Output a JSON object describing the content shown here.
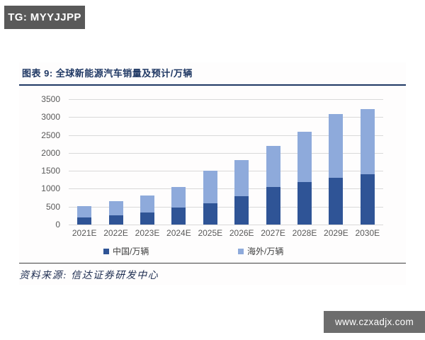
{
  "page": {
    "badge_label": "TG: MYYJJPP",
    "watermark_label": "www.czxadjx.com"
  },
  "figure": {
    "title": "图表 9: 全球新能源汽车销量及预计/万辆",
    "source": "资料来源: 信达证券研发中心"
  },
  "chart_data": {
    "type": "bar",
    "stacked": true,
    "title": "全球新能源汽车销量及预计/万辆",
    "xlabel": "",
    "ylabel": "",
    "categories": [
      "2021E",
      "2022E",
      "2023E",
      "2024E",
      "2025E",
      "2026E",
      "2027E",
      "2028E",
      "2029E",
      "2030E"
    ],
    "series": [
      {
        "name": "中国/万辆",
        "color": "#2f5496",
        "values": [
          200,
          260,
          330,
          470,
          600,
          790,
          1050,
          1180,
          1310,
          1400
        ]
      },
      {
        "name": "海外/万辆",
        "color": "#8eaadb",
        "values": [
          320,
          390,
          490,
          580,
          900,
          1010,
          1150,
          1420,
          1770,
          1820
        ]
      }
    ],
    "totals": [
      520,
      650,
      820,
      1050,
      1500,
      1800,
      2200,
      2600,
      3080,
      3220
    ],
    "ylim": [
      0,
      3500
    ],
    "ytick_step": 500,
    "grid": true,
    "legend_position": "bottom"
  },
  "colors": {
    "title_navy": "#1f3864",
    "gridline": "#d9d9d9",
    "axis_text": "#595959",
    "badge_bg": "#595959",
    "watermark_bg": "#6d6d6d"
  }
}
